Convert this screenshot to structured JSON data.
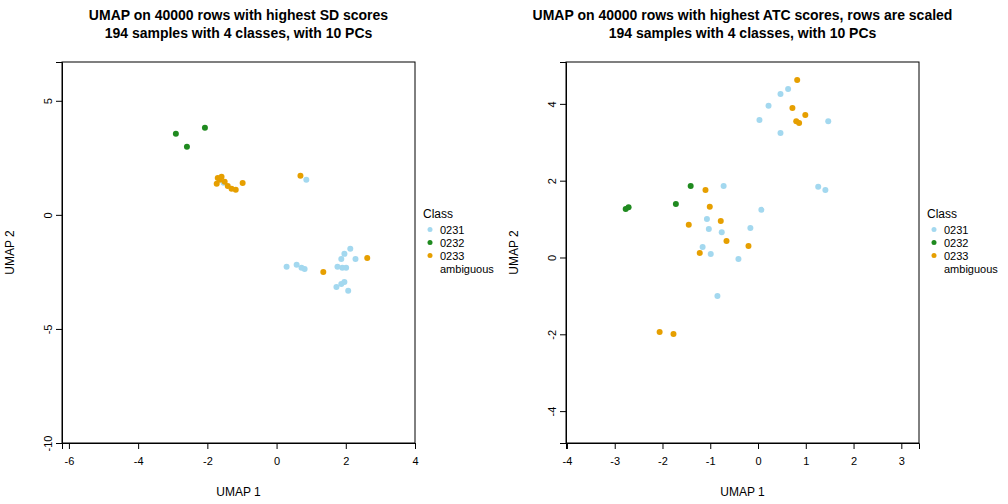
{
  "chart_data": [
    {
      "type": "scatter",
      "title": "UMAP on 40000 rows with highest SD scores",
      "subtitle": "194 samples with 4 classes, with 10 PCs",
      "x_label": "UMAP 1",
      "y_label": "UMAP 2",
      "xlim": [
        -6.2,
        4.0
      ],
      "ylim": [
        -10,
        6.7
      ],
      "xticks": [
        -6,
        -4,
        -2,
        0,
        2,
        4
      ],
      "yticks": [
        -10,
        -5,
        0,
        5
      ],
      "legend": "right",
      "legend_title": "Class",
      "marker": "circle",
      "series": [
        {
          "name": "0231",
          "color": "#a3d8ef",
          "x": [
            -1.53,
            0.86,
            0.29,
            0.58,
            0.72,
            0.81,
            1.76,
            1.87,
            1.96,
            2.13,
            2.28,
            1.73,
            1.87,
            1.96,
            1.9,
            2.01,
            2.07
          ],
          "values": [
            1.41,
            1.54,
            -2.28,
            -2.19,
            -2.32,
            -2.37,
            -2.28,
            -1.93,
            -1.71,
            -1.49,
            -1.93,
            -3.16,
            -3.03,
            -2.94,
            -2.32,
            -2.32,
            -3.33
          ]
        },
        {
          "name": "0232",
          "color": "#1f8a1f",
          "x": [
            -2.91,
            -2.59,
            -2.07
          ],
          "values": [
            3.55,
            2.98,
            3.82
          ]
        },
        {
          "name": "0233",
          "color": "#e69f00",
          "x": [
            -1.7,
            -1.64,
            -1.73,
            -1.59,
            -1.5,
            -1.41,
            -1.3,
            -1.18,
            -0.98,
            0.69,
            1.35,
            2.62
          ],
          "values": [
            1.62,
            1.54,
            1.36,
            1.67,
            1.45,
            1.27,
            1.14,
            1.1,
            1.4,
            1.71,
            -2.5,
            -1.89
          ]
        },
        {
          "name": "ambiguous",
          "color": null,
          "x": [],
          "values": []
        }
      ]
    },
    {
      "type": "scatter",
      "title": "UMAP on 40000 rows with highest ATC scores, rows are scaled",
      "subtitle": "194 samples with 4 classes, with 10 PCs",
      "x_label": "UMAP 1",
      "y_label": "UMAP 2",
      "xlim": [
        -4.02,
        3.37
      ],
      "ylim": [
        -4.83,
        5.09
      ],
      "xticks": [
        -4,
        -3,
        -2,
        -1,
        0,
        1,
        2,
        3
      ],
      "yticks": [
        -4,
        -2,
        0,
        2,
        4
      ],
      "legend": "right",
      "legend_title": "Class",
      "marker": "circle",
      "series": [
        {
          "name": "0231",
          "color": "#a3d8ef",
          "x": [
            0.03,
            0.22,
            0.47,
            0.63,
            0.47,
            1.47,
            1.26,
            1.41,
            0.07,
            -0.16,
            -0.72,
            -1.07,
            -1.03,
            -1.16,
            -0.99,
            -0.41,
            -0.76,
            -0.85
          ],
          "values": [
            3.58,
            3.95,
            4.26,
            4.39,
            3.24,
            3.55,
            1.84,
            1.76,
            1.24,
            0.77,
            1.86,
            1.0,
            0.74,
            0.27,
            0.09,
            -0.04,
            0.66,
            -1.0
          ]
        },
        {
          "name": "0232",
          "color": "#1f8a1f",
          "x": [
            -2.77,
            -2.71,
            -1.41,
            -1.72
          ],
          "values": [
            1.26,
            1.31,
            1.86,
            1.39
          ]
        },
        {
          "name": "0233",
          "color": "#e69f00",
          "x": [
            0.82,
            0.72,
            0.99,
            0.8,
            0.86,
            -1.1,
            -1.01,
            -1.45,
            -0.78,
            -1.22,
            -0.66,
            -0.2,
            -2.06,
            -1.77
          ],
          "values": [
            4.62,
            3.89,
            3.71,
            3.55,
            3.5,
            1.76,
            1.32,
            0.85,
            0.95,
            0.12,
            0.43,
            0.3,
            -1.94,
            -1.99
          ]
        },
        {
          "name": "ambiguous",
          "color": null,
          "x": [],
          "values": []
        }
      ]
    }
  ]
}
